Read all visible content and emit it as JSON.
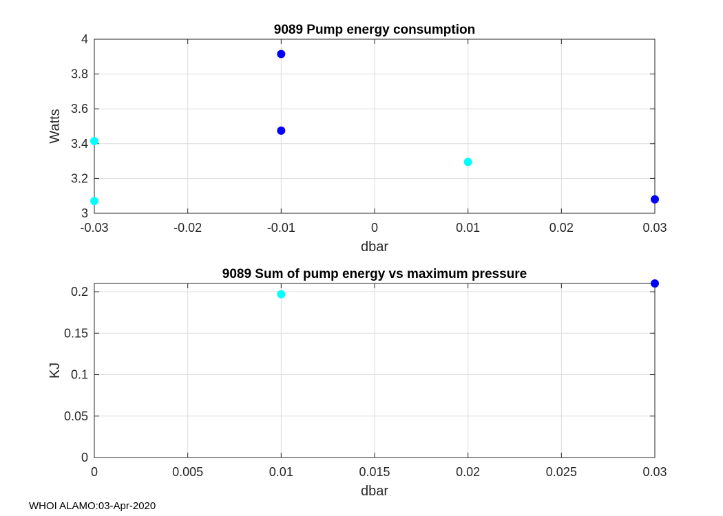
{
  "chart_data": [
    {
      "type": "scatter",
      "title": "9089 Pump energy consumption",
      "xlabel": "dbar",
      "ylabel": "Watts",
      "xlim": [
        -0.03,
        0.03
      ],
      "ylim": [
        3,
        4
      ],
      "xticks": [
        -0.03,
        -0.02,
        -0.01,
        0,
        0.01,
        0.02,
        0.03
      ],
      "xtick_labels": [
        "-0.03",
        "-0.02",
        "-0.01",
        "0",
        "0.01",
        "0.02",
        "0.03"
      ],
      "yticks": [
        3,
        3.2,
        3.4,
        3.6,
        3.8,
        4
      ],
      "ytick_labels": [
        "3",
        "3.2",
        "3.4",
        "3.6",
        "3.8",
        "4"
      ],
      "grid": true,
      "series": [
        {
          "name": "cyan",
          "color": "#00ffff",
          "points": [
            [
              -0.03,
              3.415
            ],
            [
              -0.03,
              3.07
            ],
            [
              0.01,
              3.295
            ]
          ]
        },
        {
          "name": "blue",
          "color": "#0000ff",
          "points": [
            [
              -0.01,
              3.915
            ],
            [
              -0.01,
              3.475
            ],
            [
              0.03,
              3.08
            ]
          ]
        }
      ]
    },
    {
      "type": "scatter",
      "title": "9089 Sum of pump energy vs maximum pressure",
      "xlabel": "dbar",
      "ylabel": "KJ",
      "xlim": [
        0,
        0.03
      ],
      "ylim": [
        0,
        0.21
      ],
      "xticks": [
        0,
        0.005,
        0.01,
        0.015,
        0.02,
        0.025,
        0.03
      ],
      "xtick_labels": [
        "0",
        "0.005",
        "0.01",
        "0.015",
        "0.02",
        "0.025",
        "0.03"
      ],
      "yticks": [
        0,
        0.05,
        0.1,
        0.15,
        0.2
      ],
      "ytick_labels": [
        "0",
        "0.05",
        "0.1",
        "0.15",
        "0.2"
      ],
      "grid": true,
      "series": [
        {
          "name": "cyan",
          "color": "#00ffff",
          "points": [
            [
              0.01,
              0.197
            ]
          ]
        },
        {
          "name": "blue",
          "color": "#0000ff",
          "points": [
            [
              0.03,
              0.21
            ]
          ]
        }
      ]
    }
  ],
  "footer": "WHOI ALAMO:03-Apr-2020"
}
